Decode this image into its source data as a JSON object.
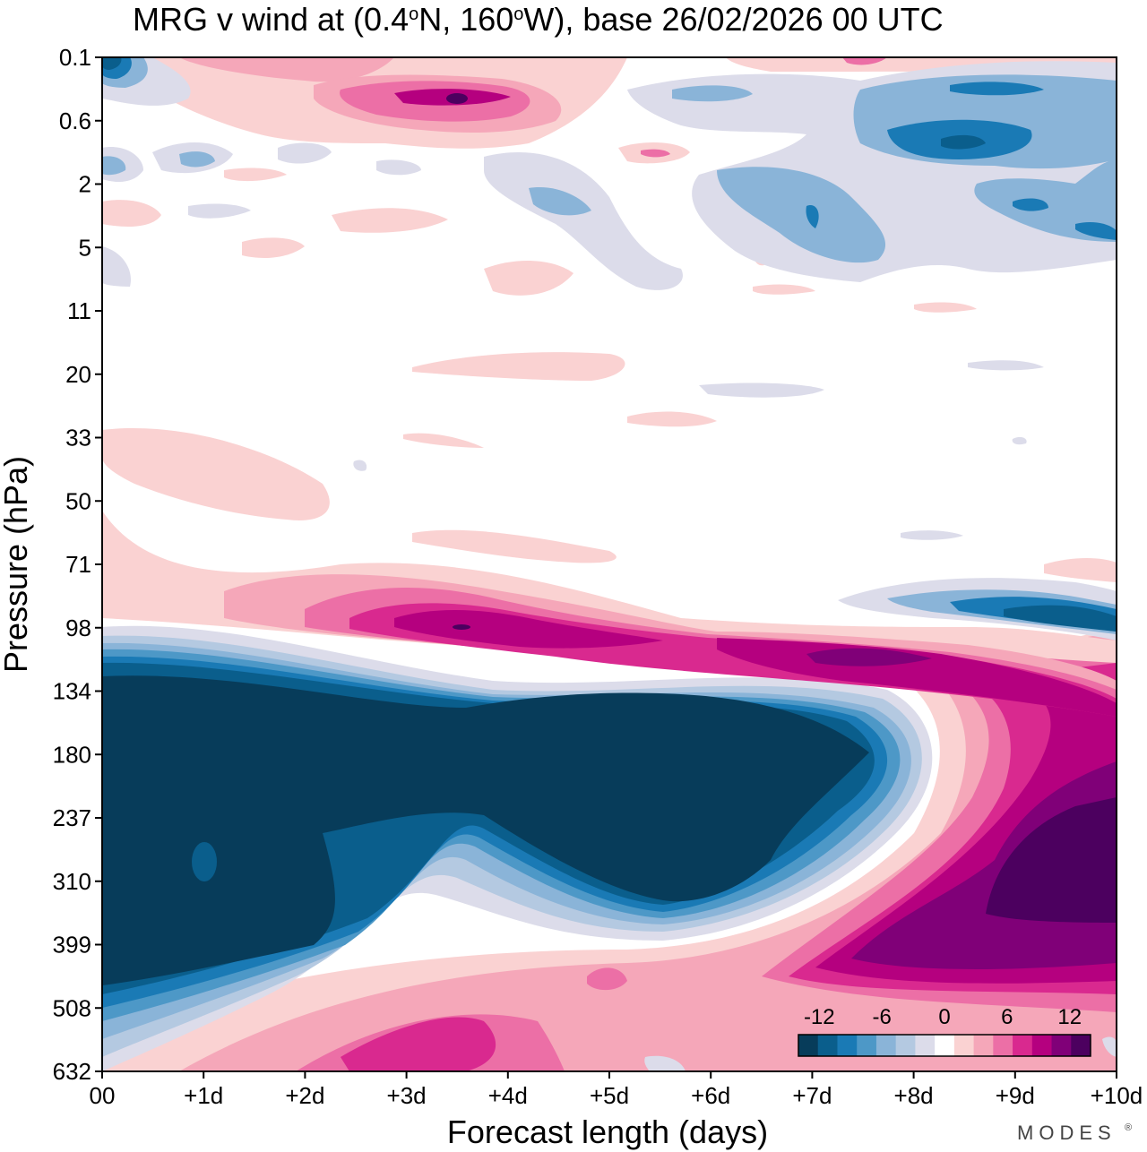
{
  "chart_data": {
    "type": "filled-contour",
    "title": "MRG v wind at (0.4°N, 160°W),  base 26/02/2026  00 UTC",
    "title_parts": {
      "prefix": "MRG v wind at (0.4",
      "lat_hemi": "N, 160",
      "lon_hemi": "W),  base 26/02/2026  00 UTC",
      "degree_mark": "o"
    },
    "xlabel": "Forecast length (days)",
    "ylabel": "Pressure (hPa)",
    "x_ticks": [
      "00",
      "+1d",
      "+2d",
      "+3d",
      "+4d",
      "+5d",
      "+6d",
      "+7d",
      "+8d",
      "+9d",
      "+10d"
    ],
    "xlim": [
      0,
      10
    ],
    "y_ticks": [
      "0.1",
      "0.6",
      "2",
      "5",
      "11",
      "20",
      "33",
      "50",
      "71",
      "98",
      "134",
      "180",
      "237",
      "310",
      "399",
      "508",
      "632"
    ],
    "y_axis_note": "pressure increases downward; ticks are evenly spaced",
    "colorbar": {
      "labels": [
        "-12",
        "-6",
        "0",
        "6",
        "12"
      ],
      "levels": [
        -14,
        -12,
        -10,
        -8,
        -6,
        -4,
        -2,
        0,
        2,
        4,
        6,
        8,
        10,
        12,
        14
      ],
      "colors": [
        "#073c5a",
        "#0a5e8c",
        "#1a7ab5",
        "#4d98c7",
        "#8ab4d8",
        "#b4c9e1",
        "#dcdcea",
        "#ffffff",
        "#fad2d2",
        "#f5a7b9",
        "#ec6fa6",
        "#d9298f",
        "#b5007f",
        "#800078",
        "#4c005f"
      ]
    },
    "regions": [
      {
        "name": "strong-negative-core",
        "description": "",
        "level": -14,
        "x_range": [
          0,
          7.8
        ],
        "p_range": [
          134,
          508
        ]
      },
      {
        "name": "positive-upper-band",
        "level": 10,
        "x_range": [
          3,
          10
        ],
        "p_range": [
          71,
          134
        ]
      },
      {
        "name": "positive-lower-right",
        "level": 14,
        "x_range": [
          7.5,
          10
        ],
        "p_range": [
          180,
          508
        ]
      },
      {
        "name": "positive-lower-left",
        "level": 8,
        "x_range": [
          2,
          5.5
        ],
        "p_range": [
          508,
          632
        ]
      },
      {
        "name": "negative-top-right",
        "level": -10,
        "x_range": [
          6,
          10
        ],
        "p_range": [
          0.1,
          5
        ]
      },
      {
        "name": "positive-top-center",
        "level": 12,
        "x_range": [
          2.2,
          4.8
        ],
        "p_range": [
          0.1,
          0.6
        ]
      }
    ]
  },
  "branding": {
    "logo_text": "MODES",
    "mark": "®"
  },
  "colors": {
    "background": "#ffffff",
    "axis": "#000000"
  }
}
